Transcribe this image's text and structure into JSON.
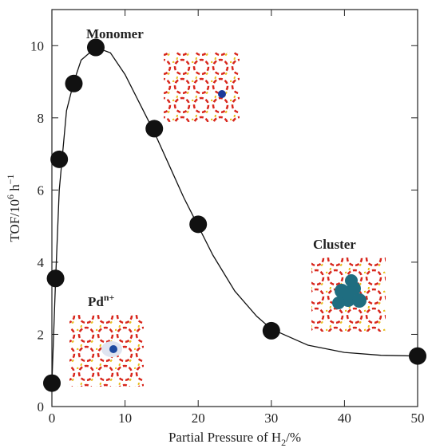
{
  "chart_data": {
    "type": "scatter",
    "xlabel": [
      "Partial Pressure of H",
      "2",
      "/%"
    ],
    "ylabel": [
      "TOF/10",
      "6",
      " h",
      "−1"
    ],
    "xlim": [
      0,
      50
    ],
    "ylim": [
      0,
      11
    ],
    "xticks": [
      0,
      10,
      20,
      30,
      40,
      50
    ],
    "yticks": [
      0,
      2,
      4,
      6,
      8,
      10
    ],
    "color": "#111111",
    "x": [
      0,
      0.5,
      1,
      3,
      6,
      14,
      20,
      30,
      50
    ],
    "values": [
      0.65,
      3.55,
      6.85,
      8.95,
      9.95,
      7.7,
      5.05,
      2.1,
      1.4
    ],
    "curve": {
      "color": "#111111",
      "x": [
        0,
        0.5,
        1,
        2,
        3,
        4,
        6,
        8,
        10,
        12,
        14,
        16,
        18,
        20,
        22,
        25,
        28,
        30,
        35,
        40,
        45,
        50
      ],
      "values": [
        0.65,
        3.5,
        6.0,
        8.2,
        9.0,
        9.6,
        9.95,
        9.8,
        9.2,
        8.4,
        7.6,
        6.7,
        5.8,
        5.0,
        4.2,
        3.2,
        2.5,
        2.15,
        1.7,
        1.5,
        1.42,
        1.4
      ]
    },
    "annotations": {
      "monomer": "Monomer",
      "cluster": "Cluster",
      "pd": [
        "Pd",
        "n+"
      ]
    }
  }
}
